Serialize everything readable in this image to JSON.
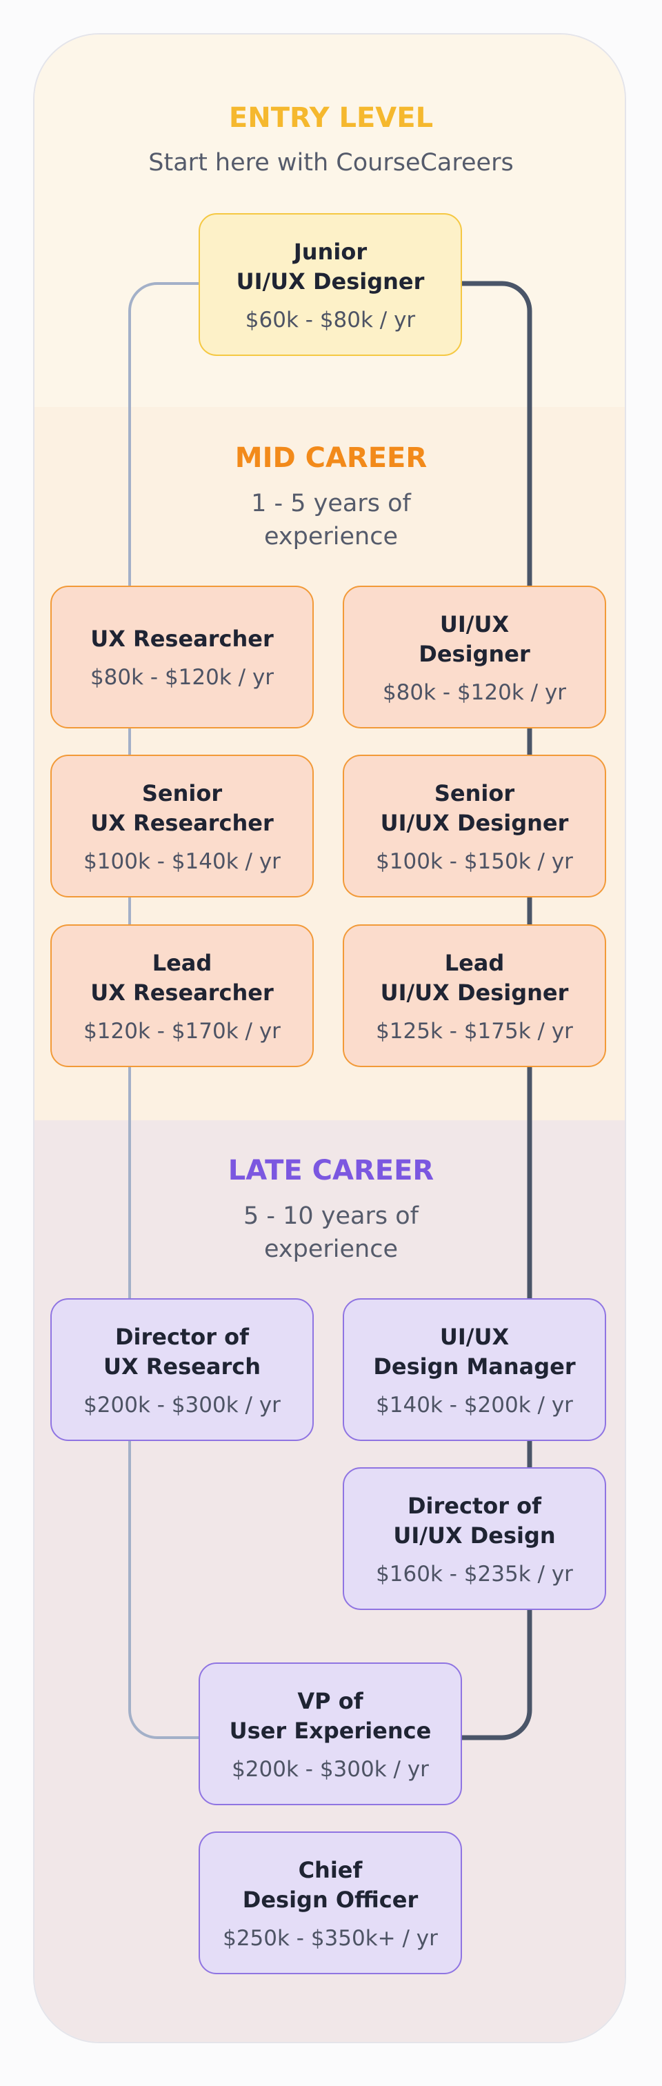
{
  "sections": [
    {
      "title": "ENTRY LEVEL",
      "subtitle": [
        "Start here with CourseCareers"
      ],
      "cards": [
        {
          "title": [
            "Junior",
            "UI/UX Designer"
          ],
          "salary": "$60k - $80k / yr"
        }
      ]
    },
    {
      "title": "MID CAREER",
      "subtitle": [
        "1 - 5 years of",
        "experience"
      ],
      "cards": [
        {
          "title": [
            "UX Researcher"
          ],
          "salary": "$80k - $120k / yr"
        },
        {
          "title": [
            "UI/UX",
            "Designer"
          ],
          "salary": "$80k - $120k / yr"
        },
        {
          "title": [
            "Senior",
            "UX Researcher"
          ],
          "salary": "$100k - $140k / yr"
        },
        {
          "title": [
            "Senior",
            "UI/UX Designer"
          ],
          "salary": "$100k - $150k / yr"
        },
        {
          "title": [
            "Lead",
            "UX Researcher"
          ],
          "salary": "$120k - $170k / yr"
        },
        {
          "title": [
            "Lead",
            "UI/UX Designer"
          ],
          "salary": "$125k - $175k / yr"
        }
      ]
    },
    {
      "title": "LATE CAREER",
      "subtitle": [
        "5 - 10 years of",
        "experience"
      ],
      "cards": [
        {
          "title": [
            "Director of",
            "UX Research"
          ],
          "salary": "$200k - $300k / yr"
        },
        {
          "title": [
            "UI/UX",
            "Design Manager"
          ],
          "salary": "$140k - $200k / yr"
        },
        {
          "title": [
            "Director of",
            "UI/UX Design"
          ],
          "salary": "$160k - $235k / yr"
        },
        {
          "title": [
            "VP of",
            "User Experience"
          ],
          "salary": "$200k - $300k / yr"
        },
        {
          "title": [
            "Chief",
            "Design Officer"
          ],
          "salary": "$250k - $350k+ / yr"
        }
      ]
    }
  ]
}
